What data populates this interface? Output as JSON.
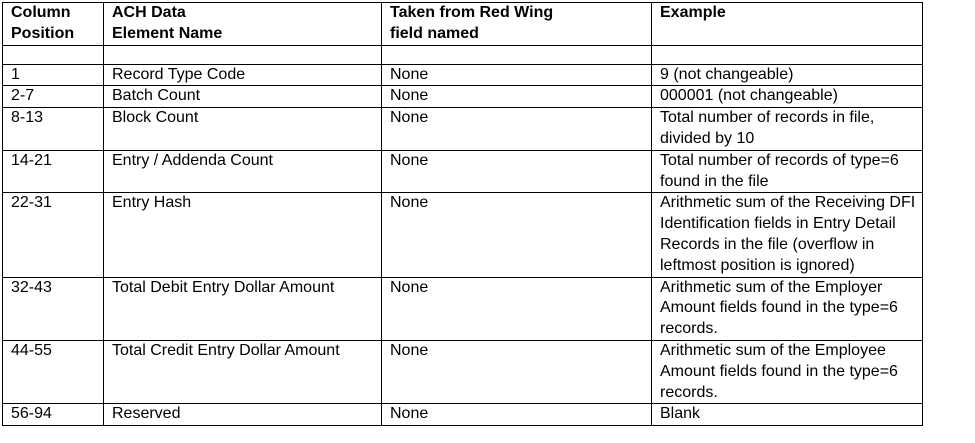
{
  "headers": [
    "Column Position",
    "ACH Data Element Name",
    "Taken from Red Wing field named",
    "Example"
  ],
  "header_lines": [
    [
      "Column",
      "Position"
    ],
    [
      "ACH Data",
      "Element Name"
    ],
    [
      "Taken from Red Wing",
      "field named"
    ],
    [
      "Example"
    ]
  ],
  "rows": [
    {
      "position": "1",
      "name": "Record Type Code",
      "source": "None",
      "example": "9 (not changeable)"
    },
    {
      "position": "2-7",
      "name": "Batch Count",
      "source": "None",
      "example": "000001 (not changeable)"
    },
    {
      "position": "8-13",
      "name": "Block Count",
      "source": "None",
      "example": "Total number of records in file, divided by 10"
    },
    {
      "position": "14-21",
      "name": "Entry / Addenda Count",
      "source": "None",
      "example": "Total number of records of type=6 found in the file"
    },
    {
      "position": "22-31",
      "name": "Entry Hash",
      "source": "None",
      "example": "Arithmetic sum of the Receiving DFI Identification fields in Entry Detail Records in the file (overflow in leftmost position is ignored)"
    },
    {
      "position": "32-43",
      "name": "Total Debit Entry Dollar Amount",
      "source": "None",
      "example": "Arithmetic sum of the Employer Amount fields found in the type=6 records."
    },
    {
      "position": "44-55",
      "name": "Total Credit Entry Dollar Amount",
      "source": "None",
      "example": "Arithmetic sum of the Employee Amount fields found in the type=6 records."
    },
    {
      "position": "56-94",
      "name": "Reserved",
      "source": "None",
      "example": "Blank"
    }
  ]
}
